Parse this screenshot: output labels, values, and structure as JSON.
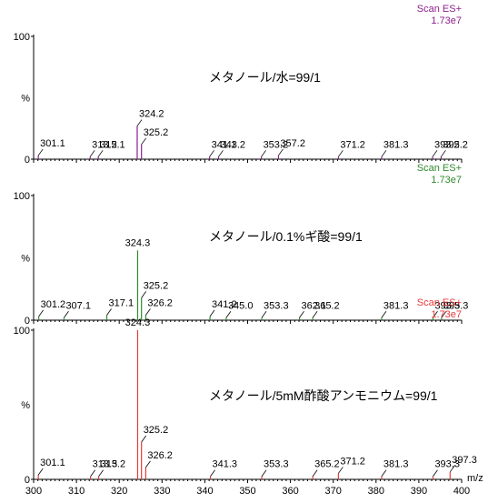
{
  "chart_data": [
    {
      "type": "bar",
      "title": "メタノール/水=99/1",
      "scan_label": "Scan ES+",
      "intensity_label": "1.73e7",
      "color": "#8c1f8c",
      "y_axis": {
        "max_label": "100",
        "mid_label": "%",
        "min_label": "0"
      },
      "xlim": [
        300,
        400
      ],
      "ylim": [
        0,
        100
      ],
      "peaks": [
        {
          "x": 301.1,
          "y": 3,
          "label": "301.1"
        },
        {
          "x": 313.2,
          "y": 2,
          "label": "313.2"
        },
        {
          "x": 315.1,
          "y": 2,
          "label": "315.1"
        },
        {
          "x": 324.2,
          "y": 27,
          "label": "324.2"
        },
        {
          "x": 325.2,
          "y": 12,
          "label": "325.2"
        },
        {
          "x": 341.1,
          "y": 2,
          "label": "341.1"
        },
        {
          "x": 343.2,
          "y": 2,
          "label": "343.2"
        },
        {
          "x": 353.2,
          "y": 2,
          "label": "353.2"
        },
        {
          "x": 357.2,
          "y": 3,
          "label": "357.2"
        },
        {
          "x": 371.2,
          "y": 2,
          "label": "371.2"
        },
        {
          "x": 381.3,
          "y": 2,
          "label": "381.3"
        },
        {
          "x": 393.2,
          "y": 2,
          "label": "393.2"
        },
        {
          "x": 395.2,
          "y": 2,
          "label": "395.2"
        }
      ]
    },
    {
      "type": "bar",
      "title": "メタノール/0.1%ギ酸=99/1",
      "scan_label": "Scan ES+",
      "intensity_label": "1.73e7",
      "color": "#2e8b2e",
      "y_axis": {
        "max_label": "100",
        "mid_label": "%",
        "min_label": "0"
      },
      "xlim": [
        300,
        400
      ],
      "ylim": [
        0,
        100
      ],
      "peaks": [
        {
          "x": 301.2,
          "y": 3,
          "label": "301.2"
        },
        {
          "x": 307.1,
          "y": 2,
          "label": "307.1"
        },
        {
          "x": 317.1,
          "y": 4,
          "label": "317.1"
        },
        {
          "x": 324.3,
          "y": 56,
          "label": "324.3"
        },
        {
          "x": 325.2,
          "y": 18,
          "label": "325.2"
        },
        {
          "x": 326.2,
          "y": 4,
          "label": "326.2"
        },
        {
          "x": 341.2,
          "y": 3,
          "label": "341.2"
        },
        {
          "x": 345.0,
          "y": 2,
          "label": "345.0"
        },
        {
          "x": 353.3,
          "y": 2,
          "label": "353.3"
        },
        {
          "x": 362.1,
          "y": 2,
          "label": "362.1"
        },
        {
          "x": 365.2,
          "y": 2,
          "label": "365.2"
        },
        {
          "x": 381.3,
          "y": 2,
          "label": "381.3"
        },
        {
          "x": 393.3,
          "y": 2,
          "label": "393.3"
        },
        {
          "x": 395.3,
          "y": 2,
          "label": "395.3"
        }
      ]
    },
    {
      "type": "bar",
      "title": "メタノール/5mM酢酸アンモニウム=99/1",
      "scan_label": "Scan ES+",
      "intensity_label": "1.73e7",
      "color": "#e83a3a",
      "y_axis": {
        "max_label": "100",
        "mid_label": "%",
        "min_label": "0"
      },
      "xlim": [
        300,
        400
      ],
      "ylim": [
        0,
        100
      ],
      "xlabel": "m/z",
      "xticks": [
        300,
        310,
        320,
        330,
        340,
        350,
        360,
        370,
        380,
        390,
        400
      ],
      "peaks": [
        {
          "x": 301.1,
          "y": 3,
          "label": "301.1"
        },
        {
          "x": 313.3,
          "y": 2,
          "label": "313.3"
        },
        {
          "x": 315.2,
          "y": 2,
          "label": "315.2"
        },
        {
          "x": 324.3,
          "y": 100,
          "label": "324.3"
        },
        {
          "x": 325.2,
          "y": 25,
          "label": "325.2"
        },
        {
          "x": 326.2,
          "y": 8,
          "label": "326.2"
        },
        {
          "x": 341.3,
          "y": 2,
          "label": "341.3"
        },
        {
          "x": 353.3,
          "y": 2,
          "label": "353.3"
        },
        {
          "x": 365.2,
          "y": 2,
          "label": "365.2"
        },
        {
          "x": 371.2,
          "y": 4,
          "label": "371.2"
        },
        {
          "x": 381.3,
          "y": 2,
          "label": "381.3"
        },
        {
          "x": 393.3,
          "y": 2,
          "label": "393.3"
        },
        {
          "x": 397.3,
          "y": 5,
          "label": "397.3"
        }
      ]
    }
  ]
}
